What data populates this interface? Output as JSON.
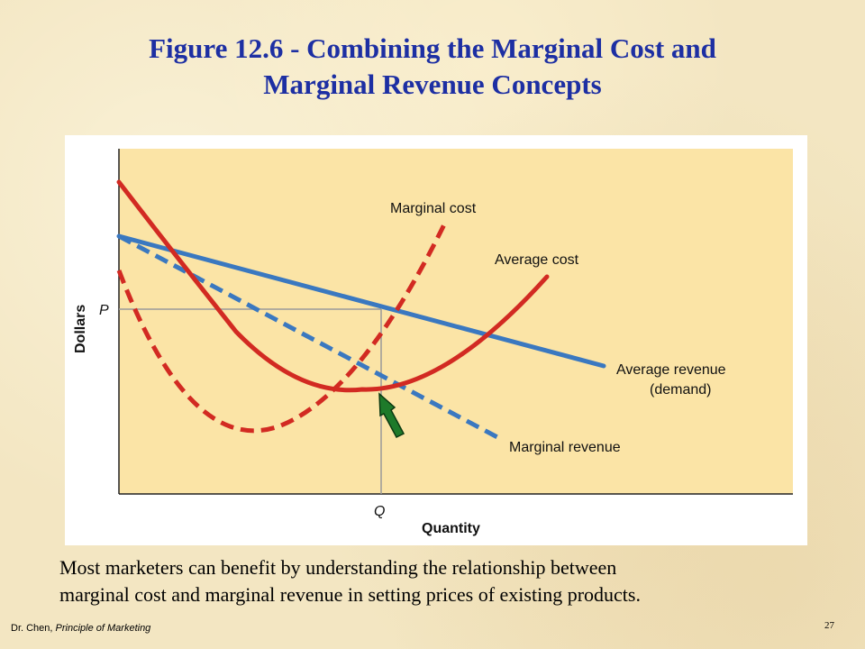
{
  "slide": {
    "title_line1": "Figure 12.6 - Combining the Marginal Cost and",
    "title_line2": "Marginal Revenue Concepts",
    "caption_line1": "Most marketers can benefit by understanding the relationship between",
    "caption_line2": "marginal cost and marginal revenue in setting prices of existing products.",
    "footer_author": "Dr. Chen, ",
    "footer_book": "Principle of Marketing",
    "page_number": "27"
  },
  "diagram": {
    "y_axis_label": "Dollars",
    "x_axis_label": "Quantity",
    "price_marker": "P",
    "quantity_marker": "Q",
    "labels": {
      "marginal_cost": "Marginal cost",
      "average_cost": "Average cost",
      "average_revenue_line1": "Average revenue",
      "average_revenue_line2": "(demand)",
      "marginal_revenue": "Marginal revenue"
    },
    "colors": {
      "cost_curves": "#d22a22",
      "revenue_curves": "#3a78c0",
      "plot_background": "#fbe4a6",
      "arrow": "#1e7a2a",
      "guide_lines": "#9a9a9a"
    },
    "arrow_icon": "up-left-arrow-icon"
  }
}
